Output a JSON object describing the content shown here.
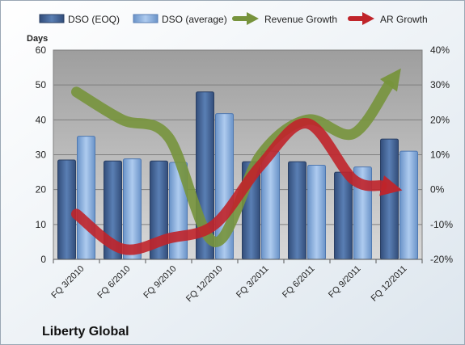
{
  "company": "Liberty Global",
  "colors": {
    "plot_bg": "#c0c0c0",
    "page_bg": "#ffffff",
    "dso_eoq": "#4a6a9a",
    "dso_avg": "#8db3e2",
    "revenue_growth": "#77933c",
    "ar_growth": "#c0242a"
  },
  "chart_data": {
    "type": "bar",
    "categories": [
      "FQ 3/2010",
      "FQ 6/2010",
      "FQ 9/2010",
      "FQ 12/2010",
      "FQ 3/2011",
      "FQ 6/2011",
      "FQ 9/2011",
      "FQ 12/2011"
    ],
    "y_left": {
      "label": "Days",
      "ylim": [
        0,
        60
      ],
      "ticks": [
        "0",
        "10",
        "20",
        "30",
        "40",
        "50",
        "60"
      ]
    },
    "y_right": {
      "ylim": [
        -20,
        40
      ],
      "ticks": [
        "-20%",
        "-10%",
        "0%",
        "10%",
        "20%",
        "30%",
        "40%"
      ]
    },
    "grid": true,
    "legend_position": "top",
    "series": [
      {
        "name": "DSO (EOQ)",
        "type": "bar",
        "axis": "left",
        "values": [
          28.5,
          28.2,
          28.2,
          48,
          28,
          28,
          25,
          34.5
        ]
      },
      {
        "name": "DSO (average)",
        "type": "bar",
        "axis": "left",
        "values": [
          35.3,
          28.8,
          27.8,
          41.8,
          31,
          27,
          26.5,
          31
        ]
      },
      {
        "name": "Revenue Growth",
        "type": "line",
        "axis": "right",
        "values": [
          28,
          20,
          15,
          -15,
          10,
          20,
          16,
          34
        ]
      },
      {
        "name": "AR Growth",
        "type": "line",
        "axis": "right",
        "values": [
          -7,
          -17,
          -14,
          -10,
          7,
          19,
          3,
          0
        ]
      }
    ]
  }
}
